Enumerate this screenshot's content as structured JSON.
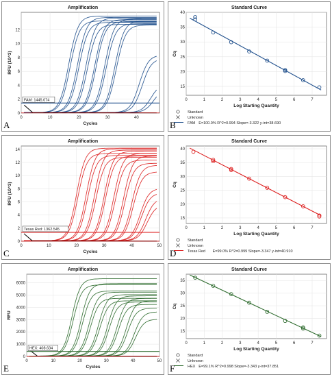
{
  "chart_data": [
    {
      "panel": "A",
      "type": "line",
      "title": "Amplification",
      "xlabel": "Cycles",
      "ylabel": "RFU (10^3)",
      "xlim": [
        0,
        48
      ],
      "ylim": [
        0,
        14.5
      ],
      "xticks": [
        "0",
        "10",
        "20",
        "30",
        "40"
      ],
      "yticks": [
        "0",
        "2",
        "4",
        "6",
        "8",
        "10",
        "12"
      ],
      "color": "#1f4f8c",
      "threshold": 1.445,
      "threshold_label": "FAM: 1445.074",
      "curves": [
        {
          "mid": 16.5,
          "max": 13.9
        },
        {
          "mid": 17,
          "max": 13.2
        },
        {
          "mid": 19.5,
          "max": 13.7
        },
        {
          "mid": 20,
          "max": 13.0
        },
        {
          "mid": 22.5,
          "max": 13.6
        },
        {
          "mid": 23,
          "max": 12.7
        },
        {
          "mid": 25.5,
          "max": 13.4
        },
        {
          "mid": 26,
          "max": 13.1
        },
        {
          "mid": 29,
          "max": 13.5
        },
        {
          "mid": 29.5,
          "max": 12.8
        },
        {
          "mid": 32.5,
          "max": 13.2
        },
        {
          "mid": 33,
          "max": 12.6
        },
        {
          "mid": 41,
          "max": 8.3
        },
        {
          "mid": 42,
          "max": 7.8
        },
        {
          "mid": 45,
          "max": 4.2
        },
        {
          "mid": 46,
          "max": 3.5
        }
      ]
    },
    {
      "panel": "B",
      "type": "scatter",
      "title": "Standard Curve",
      "xlabel": "Log Starting Quantity",
      "ylabel": "Cq",
      "xlim": [
        0,
        7.8
      ],
      "ylim": [
        12,
        40
      ],
      "xticks": [
        "0",
        "1",
        "2",
        "3",
        "4",
        "5",
        "6",
        "7"
      ],
      "yticks": [
        "15",
        "20",
        "25",
        "30",
        "35",
        "40"
      ],
      "color": "#1f4f8c",
      "legend": [
        "Standard",
        "Unknown"
      ],
      "line_legend": "FAM",
      "fit_label": "E=100.0% R^2=0.994 Slope=-3.322 y-int=38.690",
      "fit": {
        "slope": -3.322,
        "intercept": 38.69,
        "x_range": [
          0.2,
          7.5
        ]
      },
      "points": [
        [
          0.5,
          37.6
        ],
        [
          0.5,
          38.4
        ],
        [
          1.5,
          33.2
        ],
        [
          2.5,
          29.9
        ],
        [
          3.5,
          26.8
        ],
        [
          4.5,
          23.7
        ],
        [
          5.5,
          20.5
        ],
        [
          5.5,
          20.2
        ],
        [
          6.5,
          17.1
        ],
        [
          7.4,
          14.7
        ]
      ]
    },
    {
      "panel": "C",
      "type": "line",
      "title": "Amplification",
      "xlabel": "Cycles",
      "ylabel": "RFU (10^3)",
      "xlim": [
        0,
        50
      ],
      "ylim": [
        0,
        14.5
      ],
      "xticks": [
        "0",
        "10",
        "20",
        "30",
        "40",
        "50"
      ],
      "yticks": [
        "0",
        "2",
        "4",
        "6",
        "8",
        "10",
        "12",
        "14"
      ],
      "color": "#dd1f1f",
      "threshold": 1.363,
      "threshold_label": "Texas Red: 1362.545",
      "curves": [
        {
          "mid": 20,
          "max": 14.1
        },
        {
          "mid": 20.5,
          "max": 13.3
        },
        {
          "mid": 23.5,
          "max": 14.0
        },
        {
          "mid": 24,
          "max": 13.0
        },
        {
          "mid": 26.5,
          "max": 13.8
        },
        {
          "mid": 27,
          "max": 12.7
        },
        {
          "mid": 30,
          "max": 13.6
        },
        {
          "mid": 30.5,
          "max": 12.9
        },
        {
          "mid": 33.5,
          "max": 13.3
        },
        {
          "mid": 34,
          "max": 12.3
        },
        {
          "mid": 37,
          "max": 12.9
        },
        {
          "mid": 37.5,
          "max": 11.8
        },
        {
          "mid": 40,
          "max": 11.5
        },
        {
          "mid": 40.5,
          "max": 10.5
        },
        {
          "mid": 43,
          "max": 8.0
        },
        {
          "mid": 43.5,
          "max": 7.3
        },
        {
          "mid": 45,
          "max": 6.5
        },
        {
          "mid": 45.5,
          "max": 5.5
        }
      ]
    },
    {
      "panel": "D",
      "type": "scatter",
      "title": "Standard Curve",
      "xlabel": "Log Starting Quantity",
      "ylabel": "Cq",
      "xlim": [
        0,
        7.8
      ],
      "ylim": [
        13,
        41
      ],
      "xticks": [
        "0",
        "1",
        "2",
        "3",
        "4",
        "5",
        "6",
        "7"
      ],
      "yticks": [
        "15",
        "20",
        "25",
        "30",
        "35",
        "40"
      ],
      "color": "#dd1f1f",
      "legend": [
        "Standard",
        "Unknown"
      ],
      "line_legend": "Texas Red",
      "fit_label": "E=99.0% R^2=0.999 Slope=-3.347 y-int=40.910",
      "fit": {
        "slope": -3.347,
        "intercept": 40.91,
        "x_range": [
          0.2,
          7.5
        ]
      },
      "points": [
        [
          0.4,
          38.9
        ],
        [
          1.5,
          36.0
        ],
        [
          1.5,
          35.5
        ],
        [
          2.5,
          32.7
        ],
        [
          2.5,
          32.3
        ],
        [
          3.5,
          29.2
        ],
        [
          4.5,
          25.9
        ],
        [
          5.5,
          22.5
        ],
        [
          6.5,
          19.2
        ],
        [
          7.4,
          15.9
        ],
        [
          7.4,
          15.5
        ]
      ]
    },
    {
      "panel": "E",
      "type": "line",
      "title": "Amplification",
      "xlabel": "Cycles",
      "ylabel": "RFU",
      "xlim": [
        0,
        50
      ],
      "ylim": [
        0,
        6700
      ],
      "xticks": [
        "0",
        "10",
        "20",
        "30",
        "40",
        "50"
      ],
      "yticks": [
        "0",
        "1000",
        "2000",
        "3000",
        "4000",
        "5000",
        "6000"
      ],
      "color": "#2e6b2e",
      "threshold": 409,
      "threshold_label": "HEX: 408.634",
      "curves": [
        {
          "mid": 17,
          "max": 6300
        },
        {
          "mid": 17.5,
          "max": 5800
        },
        {
          "mid": 20.5,
          "max": 5900
        },
        {
          "mid": 21,
          "max": 5300
        },
        {
          "mid": 23.5,
          "max": 5200
        },
        {
          "mid": 24,
          "max": 4700
        },
        {
          "mid": 27,
          "max": 5000
        },
        {
          "mid": 27.5,
          "max": 4500
        },
        {
          "mid": 30.5,
          "max": 4900
        },
        {
          "mid": 31,
          "max": 4400
        },
        {
          "mid": 34,
          "max": 4700
        },
        {
          "mid": 34.5,
          "max": 4200
        },
        {
          "mid": 37.5,
          "max": 4500
        },
        {
          "mid": 38,
          "max": 3900
        },
        {
          "mid": 40.5,
          "max": 3600
        },
        {
          "mid": 41,
          "max": 3000
        }
      ]
    },
    {
      "panel": "F",
      "type": "scatter",
      "title": "Standard Curve",
      "xlabel": "Log Starting Quantity",
      "ylabel": "Cq",
      "xlim": [
        0,
        7.8
      ],
      "ylim": [
        12,
        37.5
      ],
      "xticks": [
        "0",
        "1",
        "2",
        "3",
        "4",
        "5",
        "6",
        "7"
      ],
      "yticks": [
        "15",
        "20",
        "25",
        "30",
        "35"
      ],
      "color": "#2e6b2e",
      "legend": [
        "Standard",
        "Unknown"
      ],
      "line_legend": "HEX",
      "fit_label": "E=99.1% R^2=0.998 Slope=-3.343 y-int=37.851",
      "fit": {
        "slope": -3.343,
        "intercept": 37.851,
        "x_range": [
          0.2,
          7.5
        ]
      },
      "points": [
        [
          0.5,
          36.1
        ],
        [
          1.5,
          32.9
        ],
        [
          2.5,
          29.6
        ],
        [
          3.5,
          26.2
        ],
        [
          4.5,
          22.6
        ],
        [
          5.5,
          19.0
        ],
        [
          6.5,
          16.4
        ],
        [
          6.5,
          16.0
        ],
        [
          7.4,
          13.2
        ]
      ]
    }
  ],
  "panel_letters": {
    "A": "A",
    "B": "B",
    "C": "C",
    "D": "D",
    "E": "E",
    "F": "F"
  }
}
